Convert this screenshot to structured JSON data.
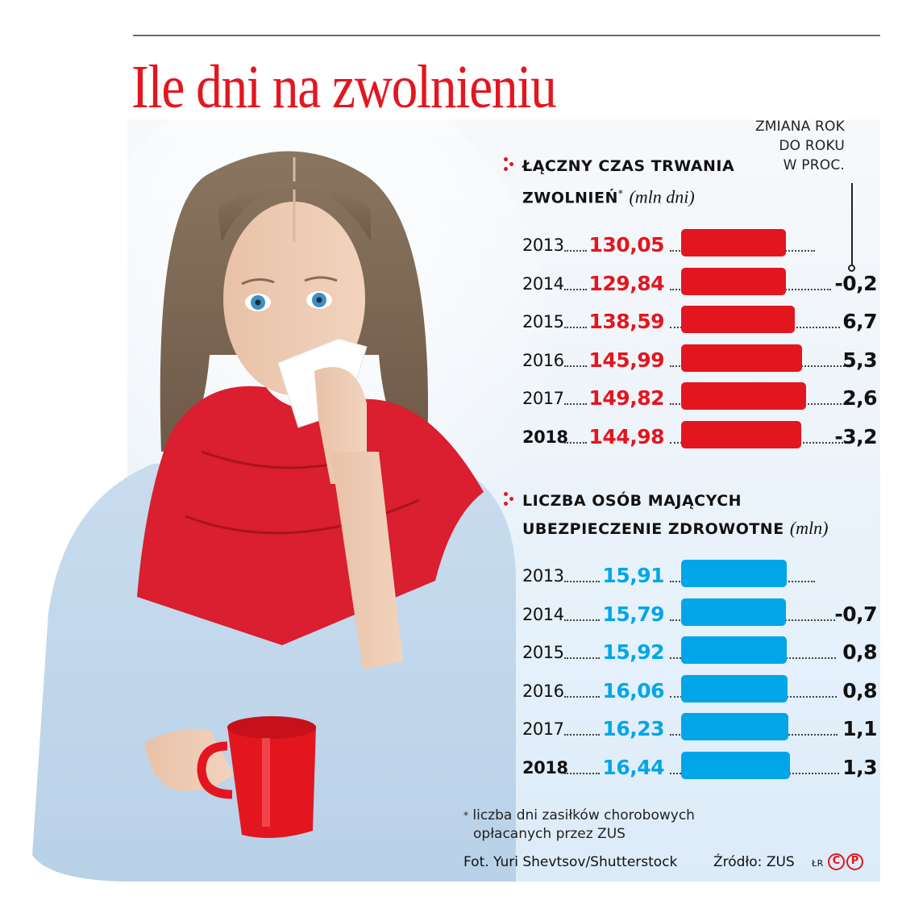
{
  "header": {
    "title": "Ile dni na zwolnieniu"
  },
  "change_column": {
    "line1": "ZMIANA ROK",
    "line2": "DO ROKU",
    "line3": "W PROC."
  },
  "section1": {
    "title_line1": "ŁĄCZNY CZAS TRWANIA",
    "title_line2": "ZWOLNIEŃ",
    "footnote_mark": "*",
    "unit": "(mln dni)",
    "color": "#e3161f",
    "rows": [
      {
        "year": "2013",
        "value": "130,05",
        "change": "",
        "bold": false
      },
      {
        "year": "2014",
        "value": "129,84",
        "change": "-0,2",
        "bold": false
      },
      {
        "year": "2015",
        "value": "138,59",
        "change": "6,7",
        "bold": false
      },
      {
        "year": "2016",
        "value": "145,99",
        "change": "5,3",
        "bold": false
      },
      {
        "year": "2017",
        "value": "149,82",
        "change": "2,6",
        "bold": false
      },
      {
        "year": "2018",
        "value": "144,98",
        "change": "-3,2",
        "bold": true
      }
    ]
  },
  "section2": {
    "title_line1": "LICZBA OSÓB MAJĄCYCH",
    "title_line2": "UBEZPIECZENIE ZDROWOTNE",
    "unit": "(mln)",
    "color": "#00a6e8",
    "rows": [
      {
        "year": "2013",
        "value": "15,91",
        "change": "",
        "bold": false
      },
      {
        "year": "2014",
        "value": "15,79",
        "change": "-0,7",
        "bold": false
      },
      {
        "year": "2015",
        "value": "15,92",
        "change": "0,8",
        "bold": false
      },
      {
        "year": "2016",
        "value": "16,06",
        "change": "0,8",
        "bold": false
      },
      {
        "year": "2017",
        "value": "16,23",
        "change": "1,1",
        "bold": false
      },
      {
        "year": "2018",
        "value": "16,44",
        "change": "1,3",
        "bold": true
      }
    ]
  },
  "footer": {
    "footnote_mark": "*",
    "footnote_line1": "liczba dni zasiłków chorobowych",
    "footnote_line2": "opłacanych przez ZUS",
    "photo_credit": "Fot. Yuri Shevtsov/Shutterstock",
    "source": "Źródło: ZUS",
    "author": "ŁR",
    "copyright_c": "C",
    "copyright_p": "P"
  },
  "colors": {
    "accent_red": "#e3161f",
    "accent_blue": "#00a6e8",
    "panel_bg": "#e6f1fa"
  },
  "chart_data": [
    {
      "type": "bar",
      "orientation": "horizontal",
      "title": "Łączny czas trwania zwolnień* (mln dni)",
      "categories": [
        "2013",
        "2014",
        "2015",
        "2016",
        "2017",
        "2018"
      ],
      "values": [
        130.05,
        129.84,
        138.59,
        145.99,
        149.82,
        144.98
      ],
      "yoy_change_pct": [
        null,
        -0.2,
        6.7,
        5.3,
        2.6,
        -3.2
      ],
      "xlabel": "",
      "ylabel": "mln dni",
      "color": "#e3161f"
    },
    {
      "type": "bar",
      "orientation": "horizontal",
      "title": "Liczba osób mających ubezpieczenie zdrowotne (mln)",
      "categories": [
        "2013",
        "2014",
        "2015",
        "2016",
        "2017",
        "2018"
      ],
      "values": [
        15.91,
        15.79,
        15.92,
        16.06,
        16.23,
        16.44
      ],
      "yoy_change_pct": [
        null,
        -0.7,
        0.8,
        0.8,
        1.1,
        1.3
      ],
      "xlabel": "",
      "ylabel": "mln",
      "color": "#00a6e8"
    }
  ]
}
